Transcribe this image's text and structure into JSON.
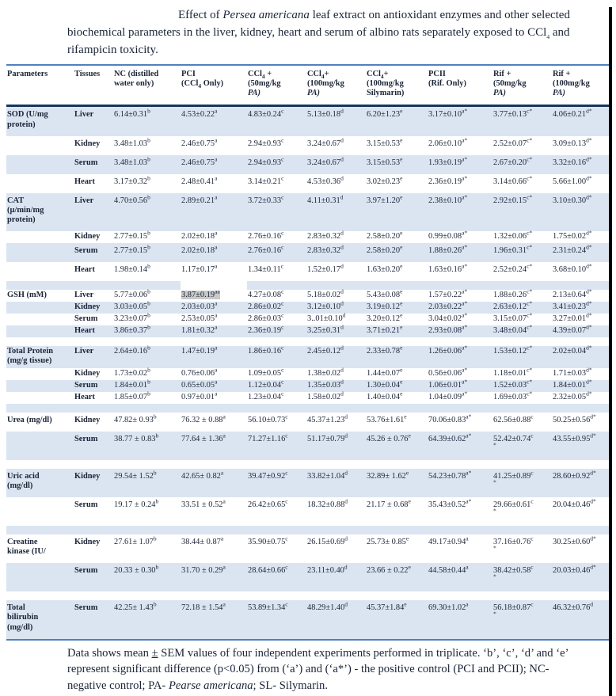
{
  "title": "Effect of [Persea americana] leaf extract on antioxidant enzymes and other selected biochemical parameters in the liver, kidney, heart and serum of albino rats separately exposed to CCl{4} and rifampicin toxicity.",
  "footnote": "Data shows mean _±_ SEM values of four independent experiments performed in triplicate. ‘b’, ‘c’, ‘d’ and ‘e’ represent significant difference (p<0.05) from (‘a’) and (‘a*’) - the positive control (PCI and PCII);  NC- negative control; PA- [Pearse americana]; SL- Silymarin.",
  "colors": {
    "accent_border": "#4f81bd",
    "header_rule": "#17365d",
    "row_stripe": "#dbe5f1",
    "highlight": "#c9c9c9",
    "page_edge": "#000000"
  },
  "table": {
    "headers": [
      [
        "Parameters"
      ],
      [
        "Tissues"
      ],
      [
        "NC (distilled",
        "water only)"
      ],
      [
        "PCI",
        "(CCl{4} Only)"
      ],
      [
        "CCl{4} +",
        "(50mg/kg",
        "[PA)]"
      ],
      [
        "CCl{4}+",
        "(100mg/kg",
        "[PA)]"
      ],
      [
        "CCl{4}+",
        "(100mg/kg",
        "Silymarin)"
      ],
      [
        "PCII",
        "(Rif. Only)"
      ],
      [
        "Rif +",
        "(50mg/kg",
        "[PA)]"
      ],
      [
        "Rif +",
        "(100mg/kg",
        "[PA)]"
      ]
    ],
    "rows": [
      {
        "param": [
          "SOD (U/mg",
          "protein)"
        ],
        "tissue": "Liver",
        "shade": true,
        "values": [
          "6.14±0.31^b",
          "4.53±0.22^a",
          "4.83±0.24^c",
          "5.13±0.18^d",
          "6.20±1.23^e",
          "3.17±0.10^a*",
          "3.77±0.13^c*",
          "4.06±0.21^d*"
        ]
      },
      {
        "tissue": "Kidney",
        "shade": false,
        "values": [
          "3.48±1.03^b",
          "2.46±0.75^a",
          "2.94±0.93^c",
          "3.24±0.67^d",
          "3.15±0.53^e",
          "2.06±0.10^a*",
          "2.52±0.07^c*",
          "3.09±0.13^d*"
        ]
      },
      {
        "tissue": "Serum",
        "shade": true,
        "values": [
          "3.48±1.03^b",
          "2.46±0.75^a",
          "2.94±0.93^c",
          "3.24±0.67^d",
          "3.15±0.53^e",
          "1.93±0.19^a*",
          "2.67±0.20^c*",
          "3.32±0.16^d*"
        ]
      },
      {
        "tissue": "Heart",
        "shade": false,
        "values": [
          "3.17±0.32^b",
          "2.48±0.41^a",
          "3.14±0.21^c",
          "4.53±0.36^d",
          "3.02±0.23^e",
          "2.36±0.19^a*",
          "3.14±0.66^c*",
          "5.66±1.00^d*"
        ]
      },
      {
        "param": [
          "CAT",
          "(µ/min/mg",
          "protein)"
        ],
        "tissue": "Liver",
        "shade": true,
        "values": [
          "4.70±0.56^b",
          "2.89±0.21^a",
          "3.72±0.33^c",
          "4.11±0.31^d",
          "3.97±1.20^e",
          "2.38±0.10^a*",
          "2.92±0.15^c*",
          "3.10±0.30^d*"
        ]
      },
      {
        "tissue": "Kidney",
        "shade": false,
        "tight": true,
        "values": [
          "2.77±0.15^b",
          "2.02±0.18^a",
          "2.76±0.16^c",
          "2.83±0.32^d",
          "2.58±0.20^e",
          "0.99±0.08^a*",
          "1.32±0.06^c*",
          "1.75±0.02^d*"
        ]
      },
      {
        "tissue": "Serum",
        "shade": true,
        "values": [
          "2.77±0.15^b",
          "2.02±0.18^a",
          "2.76±0.16^c",
          "2.83±0.32^d",
          "2.58±0.20^e",
          "1.88±0.26^a*",
          "1.96±0.31^c*",
          "2.31±0.24^d*"
        ]
      },
      {
        "tissue": "Heart",
        "shade": false,
        "values": [
          "1.98±0.14^b",
          "1.17±0.17^a",
          "1.34±0.11^c",
          "1.52±0.17^d",
          "1.63±0.20^e",
          "1.63±0.16^a*",
          "2.52±0.24^c*",
          "3.68±0.10^d*"
        ]
      },
      {
        "spacer": true,
        "shade": true,
        "notch": true
      },
      {
        "param": [
          "GSH (mM)"
        ],
        "tissue": "Liver",
        "shade": false,
        "tight": true,
        "values": [
          "5.77±0.06^b",
          "!3.87±0.19^aa",
          "4.27±0.08^c",
          "5.18±0.02^d",
          "5.43±0.08^e",
          "1.57±0.22^a*",
          "1.88±0.26^c*",
          "2.13±0.64^d*"
        ]
      },
      {
        "tissue": "Kidney",
        "shade": true,
        "tight": true,
        "values": [
          "3.03±0.05^b",
          "2.03±0.03^a",
          "2.86±0.02^c",
          "3.12±0.10^d",
          "3.19±0.12^e",
          "2.03±0.22^a*",
          "2.63±0.12^c*",
          "3.41±0.23^d*"
        ]
      },
      {
        "tissue": "Serum",
        "shade": false,
        "tight": true,
        "values": [
          "3.23±0.07^b",
          "2.53±0.05^a",
          "2.86±0.03^c",
          "3..01±0.10^d",
          "3.20±0.12^e",
          "3.04±0.02^a*",
          "3.15±0.07^c*",
          "3.27±0.01^d*"
        ]
      },
      {
        "tissue": "Heart",
        "shade": true,
        "tight": true,
        "values": [
          "3.86±0.37^b",
          "1.81±0.32^a",
          "2.36±0.19^c",
          "3.25±0.31^d",
          "3.71±0.21^e",
          "2.93±0.08^a*",
          "3.48±0.04^c*",
          "4.39±0.07^d*"
        ]
      },
      {
        "spacer": true,
        "shade": false
      },
      {
        "param": [
          "Total Protein",
          "(mg/g tissue)"
        ],
        "tissue": "Liver",
        "shade": true,
        "tight": true,
        "values": [
          "2.64±0.16^b",
          "1.47±0.19^a",
          "1.86±0.16^c",
          "2.45±0.12^d",
          "2.33±0.78^e",
          "1.26±0.06^a*",
          "1.53±0.12^c*",
          "2.02±0.04^d*"
        ]
      },
      {
        "tissue": "Kidney",
        "shade": false,
        "tight": true,
        "values": [
          "1.73±0.02^b",
          "0.76±0.06^a",
          "1.09±0.05^c",
          "1.38±0.02^d",
          "1.44±0.07^e",
          "0.56±0.06^a*",
          "1.18±0.01^c*",
          "1.71±0.03^d*"
        ]
      },
      {
        "tissue": "Serum",
        "shade": true,
        "tight": true,
        "values": [
          "1.84±0.01^b",
          "0.65±0.05^a",
          "1.12±0.04^c",
          "1.35±0.03^d",
          "1.30±0.04^e",
          "1.06±0.01^a*",
          "1.52±0.03^c*",
          "1.84±0.01^d*"
        ]
      },
      {
        "tissue": "Heart",
        "shade": false,
        "tight": true,
        "values": [
          "1.85±0.07^b",
          "0.97±0.01^a",
          "1.23±0.04^c",
          "1.58±0.02^d",
          "1.40±0.04^e",
          "1.04±0.09^a*",
          "1.69±0.03^c*",
          "2.32±0.05^d*"
        ]
      },
      {
        "spacer": true,
        "shade": true
      },
      {
        "param": [
          "Urea (mg/dl)"
        ],
        "tissue": "Kidney",
        "shade": false,
        "values": [
          "47.82± 0.93^b",
          "76.32 ± 0.88^a",
          "56.10±0.73^c",
          "45.37±1.23^d",
          "53.76±1.61^e",
          "70.06±0.83^a*",
          "62.56±0.88^c",
          "50.25±0.56^d*"
        ]
      },
      {
        "tissue": "Serum",
        "shade": true,
        "values": [
          "38.77 ± 0.83^b",
          "77.64 ± 1.36^a",
          "71.27±1.16^c",
          "51.17±0.79^d",
          "45.26 ± 0.76^e",
          "64.39±0.62^a*",
          "52.42±0.74^c|*",
          "43.55±0.95^d*"
        ]
      },
      {
        "spacer": true,
        "shade": false
      },
      {
        "param": [
          "Uric acid",
          "(mg/dl)"
        ],
        "tissue": "Kidney",
        "shade": true,
        "values": [
          "29.54± 1.52^b",
          "42.65± 0.82^a",
          "39.47±0.92^c",
          "33.82±1.04^d",
          "32.89± 1.62^e",
          "54.23±0.78^a*",
          "41.25±0.89^c|*",
          "28.60±0.92^d*"
        ]
      },
      {
        "tissue": "Serum",
        "shade": false,
        "values": [
          "19.17 ± 0.24^b",
          "33.51 ± 0.52^a",
          "26.42±0.65^c",
          "18.32±0.88^d",
          "21.17 ± 0.68^e",
          "35.43±0.52^a*",
          "29.66±0.61^c|*",
          "20.04±0.46^d*"
        ]
      },
      {
        "spacer": true,
        "shade": true
      },
      {
        "param": [
          "Creatine",
          "kinase (IU/"
        ],
        "tissue": "Kidney",
        "shade": false,
        "values": [
          "27.61± 1.07^b",
          "38.44± 0.87^a",
          "35.90±0.75^c",
          "26.15±0.69^d",
          "25.73± 0.85^e",
          "49.17±0.94^a",
          "37.16±0.76^c|*",
          "30.25±0.60^d*"
        ]
      },
      {
        "tissue": "Serum",
        "shade": true,
        "values": [
          "20.33 ± 0.30^b",
          "31.70 ± 0.29^a",
          "28.64±0.66^c",
          "23.11±0.40^d",
          "23.66 ± 0.22^e",
          "44.58±0.44^a",
          "38.42±0.58^c|*",
          "20.03±0.46^d*"
        ]
      },
      {
        "spacer": true,
        "shade": false
      },
      {
        "param": [
          "Total",
          "bilirubin",
          "(mg/dl)"
        ],
        "tissue": "Serum",
        "shade": true,
        "values": [
          "42.25± 1.43^b",
          "72.18 ± 1.54^a",
          "53.89±1.34^c",
          "48.29±1.40^d",
          "45.37±1.84^e",
          "69.30±1.02^a",
          "56.18±0.87^c|*",
          "46.32±0.76^d"
        ]
      }
    ]
  }
}
